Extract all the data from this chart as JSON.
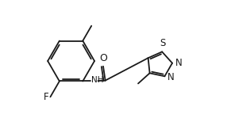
{
  "bg": "#ffffff",
  "lc": "#1a1a1a",
  "lw": 1.3,
  "fs": 7.5,
  "figsize": [
    2.86,
    1.54
  ],
  "dpi": 100,
  "xlim": [
    0.0,
    10.5
  ],
  "ylim": [
    2.0,
    9.0
  ],
  "BCx": 2.8,
  "BCy": 5.5,
  "BR": 1.35,
  "TDr": 0.75,
  "TDcx": 7.9,
  "TDcy": 5.3
}
